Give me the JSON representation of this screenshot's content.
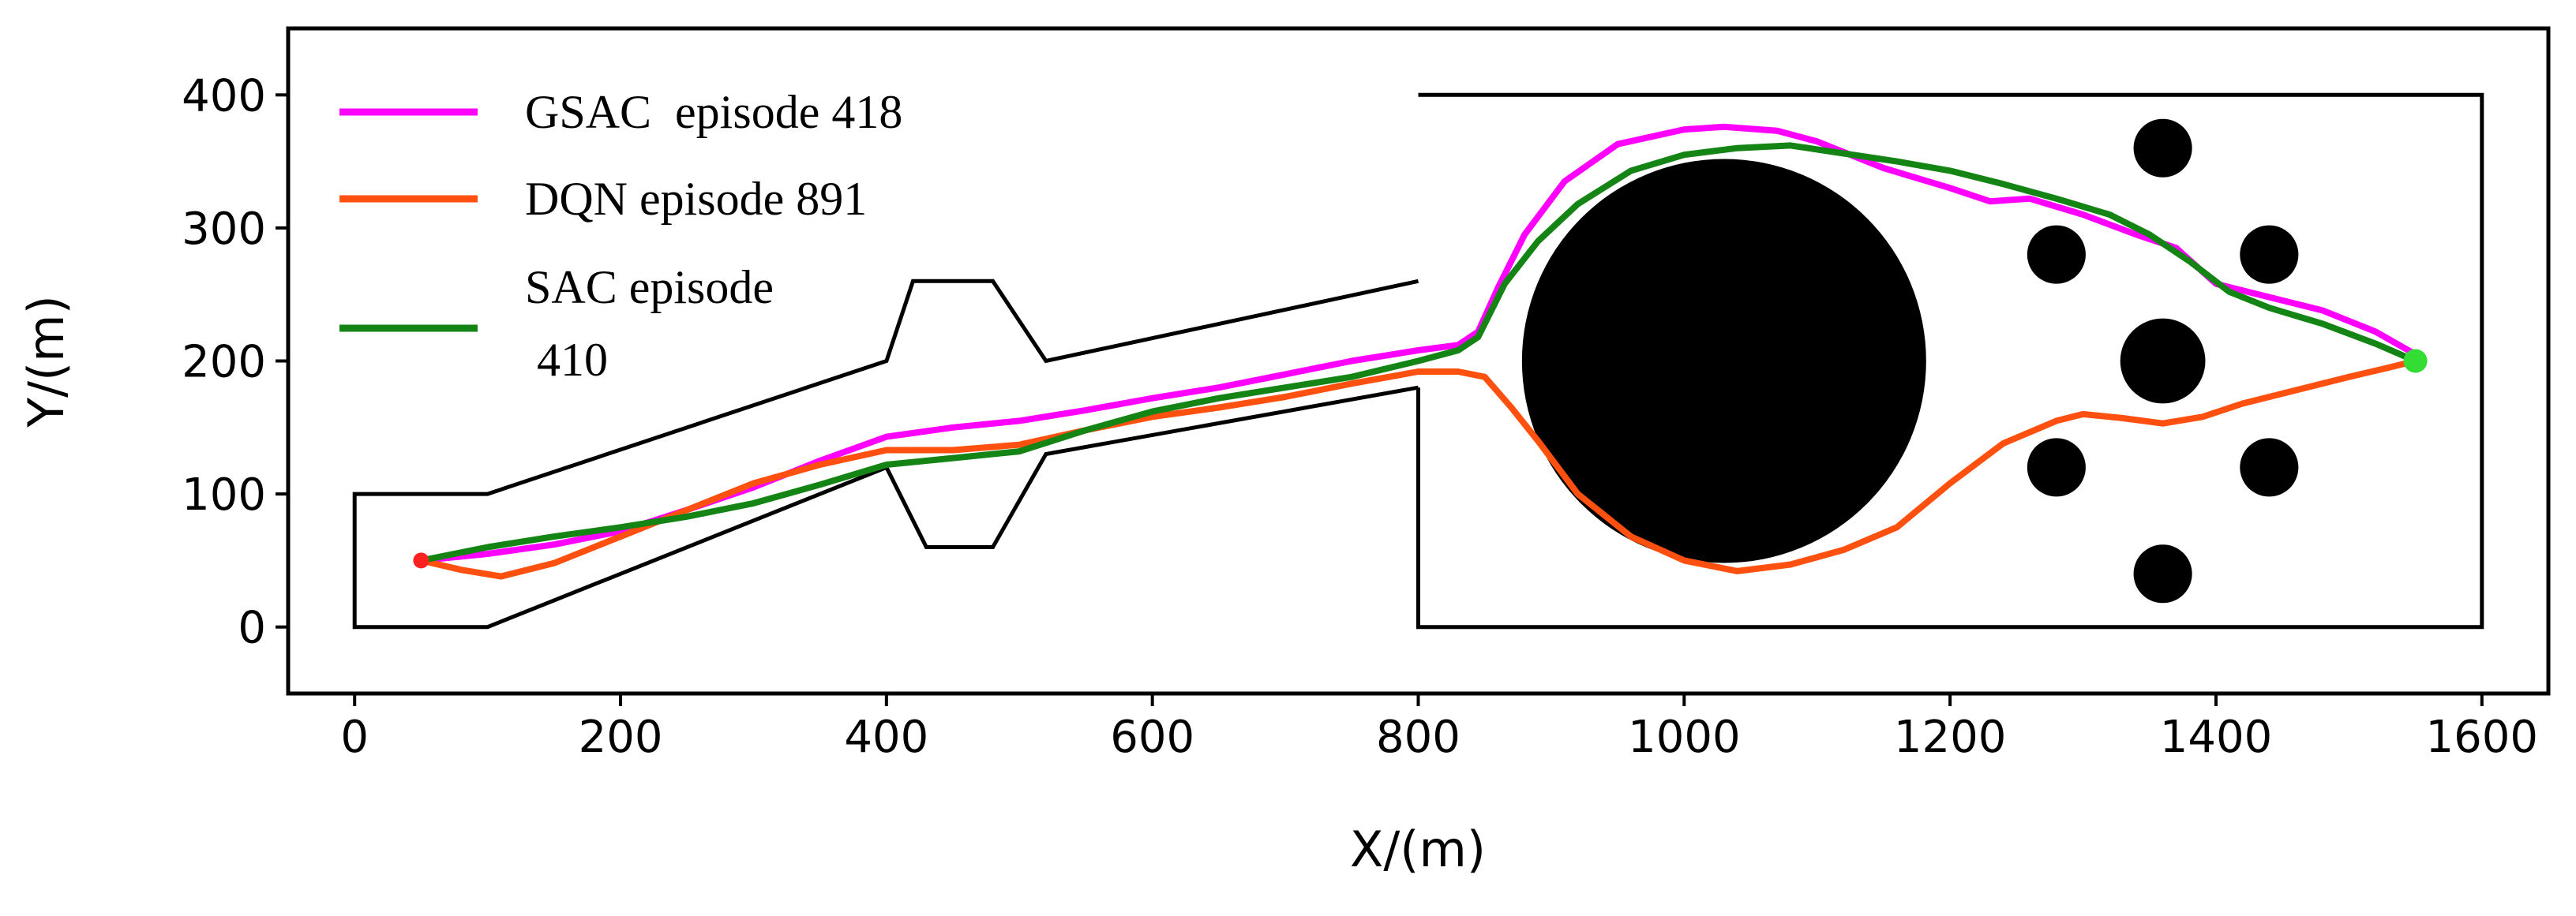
{
  "chart_data": {
    "type": "line",
    "title": "",
    "xlabel": "X/(m)",
    "ylabel": "Y/(m)",
    "xlim": [
      -50,
      1650
    ],
    "ylim": [
      -50,
      450
    ],
    "xticks": [
      0,
      200,
      400,
      600,
      800,
      1000,
      1200,
      1400,
      1600
    ],
    "yticks": [
      0,
      100,
      200,
      300,
      400
    ],
    "grid": false,
    "legend_position": "top-left",
    "legend": [
      {
        "label": "GSAC  episode 418",
        "color": "#ff00ff"
      },
      {
        "label": "DQN episode 891",
        "color": "#ff5010"
      },
      {
        "label_lines": [
          "SAC episode",
          " 410"
        ],
        "color": "#148414"
      }
    ],
    "series": [
      {
        "name": "GSAC episode 418",
        "color": "#ff00ff",
        "points": [
          [
            50,
            50
          ],
          [
            100,
            55
          ],
          [
            150,
            62
          ],
          [
            200,
            72
          ],
          [
            250,
            88
          ],
          [
            300,
            105
          ],
          [
            350,
            125
          ],
          [
            400,
            143
          ],
          [
            450,
            150
          ],
          [
            500,
            155
          ],
          [
            550,
            163
          ],
          [
            600,
            172
          ],
          [
            650,
            180
          ],
          [
            700,
            190
          ],
          [
            750,
            200
          ],
          [
            800,
            208
          ],
          [
            830,
            212
          ],
          [
            845,
            222
          ],
          [
            860,
            255
          ],
          [
            880,
            295
          ],
          [
            910,
            335
          ],
          [
            950,
            363
          ],
          [
            1000,
            374
          ],
          [
            1030,
            376
          ],
          [
            1070,
            373
          ],
          [
            1100,
            365
          ],
          [
            1150,
            345
          ],
          [
            1200,
            330
          ],
          [
            1230,
            320
          ],
          [
            1260,
            322
          ],
          [
            1300,
            310
          ],
          [
            1340,
            295
          ],
          [
            1370,
            285
          ],
          [
            1400,
            258
          ],
          [
            1440,
            248
          ],
          [
            1480,
            238
          ],
          [
            1520,
            222
          ],
          [
            1550,
            205
          ]
        ]
      },
      {
        "name": "DQN episode 891",
        "color": "#ff5010",
        "points": [
          [
            50,
            50
          ],
          [
            80,
            43
          ],
          [
            110,
            38
          ],
          [
            150,
            48
          ],
          [
            200,
            68
          ],
          [
            250,
            88
          ],
          [
            300,
            108
          ],
          [
            350,
            122
          ],
          [
            400,
            133
          ],
          [
            450,
            133
          ],
          [
            500,
            137
          ],
          [
            550,
            148
          ],
          [
            600,
            158
          ],
          [
            650,
            165
          ],
          [
            700,
            173
          ],
          [
            750,
            183
          ],
          [
            800,
            192
          ],
          [
            830,
            192
          ],
          [
            850,
            188
          ],
          [
            870,
            165
          ],
          [
            890,
            140
          ],
          [
            920,
            100
          ],
          [
            960,
            68
          ],
          [
            1000,
            50
          ],
          [
            1040,
            42
          ],
          [
            1080,
            47
          ],
          [
            1120,
            58
          ],
          [
            1160,
            75
          ],
          [
            1200,
            108
          ],
          [
            1240,
            138
          ],
          [
            1280,
            155
          ],
          [
            1300,
            160
          ],
          [
            1330,
            157
          ],
          [
            1360,
            153
          ],
          [
            1390,
            158
          ],
          [
            1420,
            168
          ],
          [
            1460,
            178
          ],
          [
            1500,
            188
          ],
          [
            1530,
            195
          ],
          [
            1550,
            200
          ]
        ]
      },
      {
        "name": "SAC episode 410",
        "color": "#148414",
        "points": [
          [
            50,
            50
          ],
          [
            100,
            60
          ],
          [
            150,
            68
          ],
          [
            200,
            75
          ],
          [
            250,
            83
          ],
          [
            300,
            93
          ],
          [
            350,
            107
          ],
          [
            400,
            122
          ],
          [
            450,
            127
          ],
          [
            500,
            132
          ],
          [
            550,
            148
          ],
          [
            600,
            162
          ],
          [
            650,
            172
          ],
          [
            700,
            180
          ],
          [
            750,
            188
          ],
          [
            800,
            200
          ],
          [
            830,
            208
          ],
          [
            845,
            218
          ],
          [
            865,
            258
          ],
          [
            890,
            290
          ],
          [
            920,
            318
          ],
          [
            960,
            343
          ],
          [
            1000,
            355
          ],
          [
            1040,
            360
          ],
          [
            1080,
            362
          ],
          [
            1120,
            356
          ],
          [
            1160,
            350
          ],
          [
            1200,
            343
          ],
          [
            1240,
            333
          ],
          [
            1280,
            322
          ],
          [
            1320,
            310
          ],
          [
            1350,
            295
          ],
          [
            1380,
            275
          ],
          [
            1410,
            252
          ],
          [
            1440,
            240
          ],
          [
            1480,
            228
          ],
          [
            1520,
            213
          ],
          [
            1550,
            200
          ]
        ]
      }
    ],
    "environment": {
      "boundary_walls": [
        [
          [
            800,
            180
          ],
          [
            520,
            130
          ],
          [
            480,
            60
          ],
          [
            430,
            60
          ],
          [
            400,
            120
          ],
          [
            100,
            0
          ],
          [
            0,
            0
          ],
          [
            0,
            100
          ],
          [
            100,
            100
          ],
          [
            400,
            200
          ],
          [
            420,
            260
          ],
          [
            480,
            260
          ],
          [
            520,
            200
          ],
          [
            800,
            260
          ]
        ],
        [
          [
            800,
            400
          ],
          [
            1600,
            400
          ],
          [
            1600,
            0
          ],
          [
            800,
            0
          ],
          [
            800,
            180
          ]
        ]
      ],
      "obstacles": [
        {
          "center": [
            1030,
            200
          ],
          "radius": 152
        },
        {
          "center": [
            1360,
            360
          ],
          "radius": 22
        },
        {
          "center": [
            1280,
            280
          ],
          "radius": 22
        },
        {
          "center": [
            1440,
            280
          ],
          "radius": 22
        },
        {
          "center": [
            1360,
            200
          ],
          "radius": 32
        },
        {
          "center": [
            1280,
            120
          ],
          "radius": 22
        },
        {
          "center": [
            1440,
            120
          ],
          "radius": 22
        },
        {
          "center": [
            1360,
            40
          ],
          "radius": 22
        }
      ],
      "start_point": {
        "x": 50,
        "y": 50,
        "color": "#ff2020"
      },
      "goal_point": {
        "x": 1550,
        "y": 200,
        "color": "#33dd33"
      }
    }
  }
}
